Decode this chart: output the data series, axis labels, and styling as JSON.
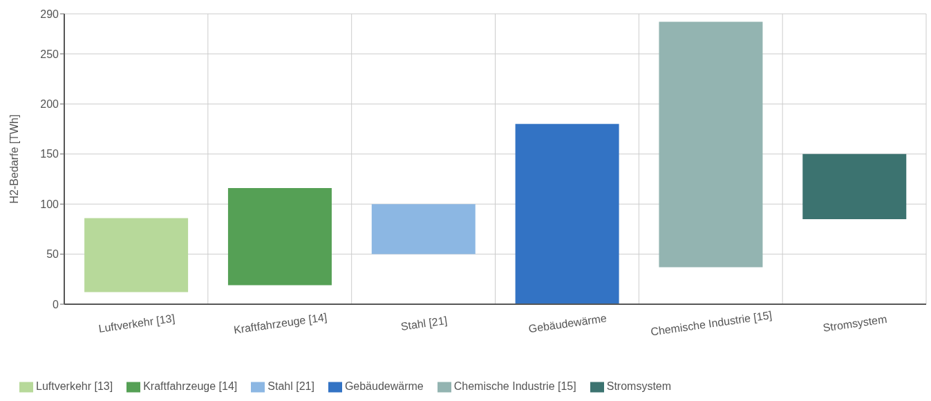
{
  "chart_data": {
    "type": "bar",
    "ylabel": "H2-Bedarfe [TWh]",
    "categories": [
      "Luftverkehr [13]",
      "Kraftfahrzeuge [14]",
      "Stahl [21]",
      "Gebäudewärme",
      "Chemische Industrie [15]",
      "Stromsystem"
    ],
    "series": [
      {
        "name": "Luftverkehr [13]",
        "color": "#b7d99a",
        "base": [
          12,
          null,
          null,
          null,
          null,
          null
        ],
        "values": [
          74,
          null,
          null,
          null,
          null,
          null
        ]
      },
      {
        "name": "Kraftfahrzeuge [14]",
        "color": "#55a055",
        "base": [
          null,
          19,
          null,
          null,
          null,
          null
        ],
        "values": [
          null,
          97,
          null,
          null,
          null,
          null
        ]
      },
      {
        "name": "Stahl [21]",
        "color": "#8cb7e3",
        "base": [
          null,
          null,
          50,
          null,
          null,
          null
        ],
        "values": [
          null,
          null,
          50,
          null,
          null,
          null
        ]
      },
      {
        "name": "Gebäudewärme",
        "color": "#3373c4",
        "base": [
          null,
          null,
          null,
          0,
          null,
          null
        ],
        "values": [
          null,
          null,
          null,
          180,
          null,
          null
        ]
      },
      {
        "name": "Chemische Industrie [15]",
        "color": "#93b4b1",
        "base": [
          null,
          null,
          null,
          null,
          37,
          null
        ],
        "values": [
          null,
          null,
          null,
          null,
          245,
          null
        ]
      },
      {
        "name": "Stromsystem",
        "color": "#3c7370",
        "base": [
          null,
          null,
          null,
          null,
          null,
          85
        ],
        "values": [
          null,
          null,
          null,
          null,
          null,
          65
        ]
      }
    ],
    "ylim": [
      0,
      290
    ],
    "yticks": [
      0,
      50,
      100,
      150,
      200,
      250,
      290
    ],
    "grid": true,
    "legend": "bottom"
  }
}
